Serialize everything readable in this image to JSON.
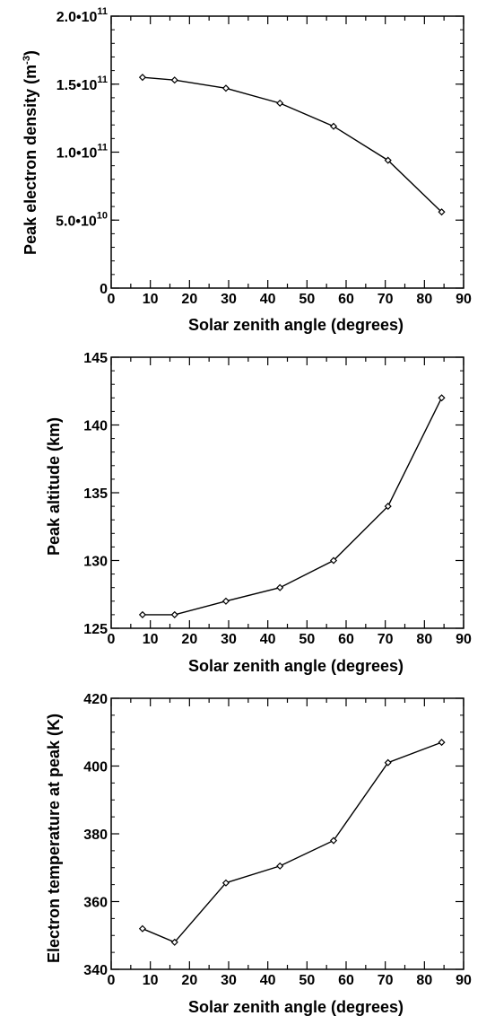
{
  "chart_data": [
    {
      "type": "line",
      "xlabel": "Solar zenith angle (degrees)",
      "ylabel": "Peak electron density (m-3)",
      "ylabel_main": "Peak electron density (m",
      "ylabel_sup": "-3",
      "ylabel_tail": ")",
      "xlim": [
        0,
        90
      ],
      "ylim": [
        0,
        200000000000.0
      ],
      "xticks": [
        0,
        10,
        20,
        30,
        40,
        50,
        60,
        70,
        80,
        90
      ],
      "xtick_labels": [
        "0",
        "10",
        "20",
        "30",
        "40",
        "50",
        "60",
        "70",
        "80",
        "90"
      ],
      "yticks": [
        0,
        50000000000.0,
        100000000000.0,
        150000000000.0,
        200000000000.0
      ],
      "ytick_labels": [
        {
          "mantissa": "0",
          "exp": ""
        },
        {
          "mantissa": "5.0•10",
          "exp": "10"
        },
        {
          "mantissa": "1.0•10",
          "exp": "11"
        },
        {
          "mantissa": "1.5•10",
          "exp": "11"
        },
        {
          "mantissa": "2.0•10",
          "exp": "11"
        }
      ],
      "y_minor_step": 10000000000.0,
      "marker": "diamond",
      "series": [
        {
          "x": [
            8.0,
            16.2,
            29.3,
            43.1,
            56.8,
            70.7,
            84.4
          ],
          "y": [
            155000000000.0,
            153000000000.0,
            147000000000.0,
            136000000000.0,
            119000000000.0,
            94000000000.0,
            56000000000.0
          ]
        }
      ]
    },
    {
      "type": "line",
      "xlabel": "Solar zenith angle (degrees)",
      "ylabel": "Peak altitude (km)",
      "xlim": [
        0,
        90
      ],
      "ylim": [
        125,
        145
      ],
      "xticks": [
        0,
        10,
        20,
        30,
        40,
        50,
        60,
        70,
        80,
        90
      ],
      "xtick_labels": [
        "0",
        "10",
        "20",
        "30",
        "40",
        "50",
        "60",
        "70",
        "80",
        "90"
      ],
      "yticks": [
        125,
        130,
        135,
        140,
        145
      ],
      "ytick_labels": [
        {
          "mantissa": "125",
          "exp": ""
        },
        {
          "mantissa": "130",
          "exp": ""
        },
        {
          "mantissa": "135",
          "exp": ""
        },
        {
          "mantissa": "140",
          "exp": ""
        },
        {
          "mantissa": "145",
          "exp": ""
        }
      ],
      "y_minor_step": 1,
      "marker": "diamond",
      "series": [
        {
          "x": [
            8.0,
            16.2,
            29.3,
            43.1,
            56.8,
            70.7,
            84.4
          ],
          "y": [
            126,
            126,
            127,
            128,
            130,
            134,
            142
          ]
        }
      ]
    },
    {
      "type": "line",
      "xlabel": "Solar zenith angle (degrees)",
      "ylabel": "Electron temperature at peak (K)",
      "xlim": [
        0,
        90
      ],
      "ylim": [
        340,
        420
      ],
      "xticks": [
        0,
        10,
        20,
        30,
        40,
        50,
        60,
        70,
        80,
        90
      ],
      "xtick_labels": [
        "0",
        "10",
        "20",
        "30",
        "40",
        "50",
        "60",
        "70",
        "80",
        "90"
      ],
      "yticks": [
        340,
        360,
        380,
        400,
        420
      ],
      "ytick_labels": [
        {
          "mantissa": "340",
          "exp": ""
        },
        {
          "mantissa": "360",
          "exp": ""
        },
        {
          "mantissa": "380",
          "exp": ""
        },
        {
          "mantissa": "400",
          "exp": ""
        },
        {
          "mantissa": "420",
          "exp": ""
        }
      ],
      "y_minor_step": 5,
      "marker": "diamond",
      "series": [
        {
          "x": [
            8.0,
            16.2,
            29.3,
            43.1,
            56.8,
            70.7,
            84.4
          ],
          "y": [
            352,
            348,
            365.5,
            370.5,
            378,
            401,
            407
          ]
        }
      ]
    }
  ]
}
